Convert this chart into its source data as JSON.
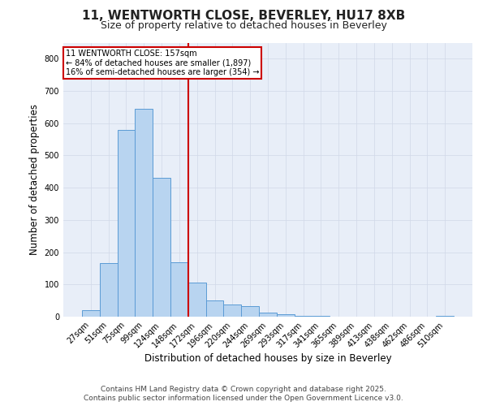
{
  "title": "11, WENTWORTH CLOSE, BEVERLEY, HU17 8XB",
  "subtitle": "Size of property relative to detached houses in Beverley",
  "xlabel": "Distribution of detached houses by size in Beverley",
  "ylabel": "Number of detached properties",
  "bin_labels": [
    "27sqm",
    "51sqm",
    "75sqm",
    "99sqm",
    "124sqm",
    "148sqm",
    "172sqm",
    "196sqm",
    "220sqm",
    "244sqm",
    "269sqm",
    "293sqm",
    "317sqm",
    "341sqm",
    "365sqm",
    "389sqm",
    "413sqm",
    "438sqm",
    "462sqm",
    "486sqm",
    "510sqm"
  ],
  "bar_heights": [
    20,
    165,
    580,
    645,
    430,
    170,
    105,
    50,
    38,
    32,
    12,
    8,
    3,
    3,
    0,
    0,
    0,
    0,
    0,
    0,
    3
  ],
  "bar_color": "#b8d4f0",
  "bar_edge_color": "#5b9bd5",
  "vline_color": "#cc0000",
  "annotation_text": "11 WENTWORTH CLOSE: 157sqm\n← 84% of detached houses are smaller (1,897)\n16% of semi-detached houses are larger (354) →",
  "annotation_box_color": "#cc0000",
  "ylim": [
    0,
    850
  ],
  "yticks": [
    0,
    100,
    200,
    300,
    400,
    500,
    600,
    700,
    800
  ],
  "footer1": "Contains HM Land Registry data © Crown copyright and database right 2025.",
  "footer2": "Contains public sector information licensed under the Open Government Licence v3.0.",
  "bg_color": "#ffffff",
  "grid_color": "#d0d8e8",
  "title_fontsize": 11,
  "subtitle_fontsize": 9,
  "tick_fontsize": 7,
  "label_fontsize": 8.5,
  "footer_fontsize": 6.5
}
